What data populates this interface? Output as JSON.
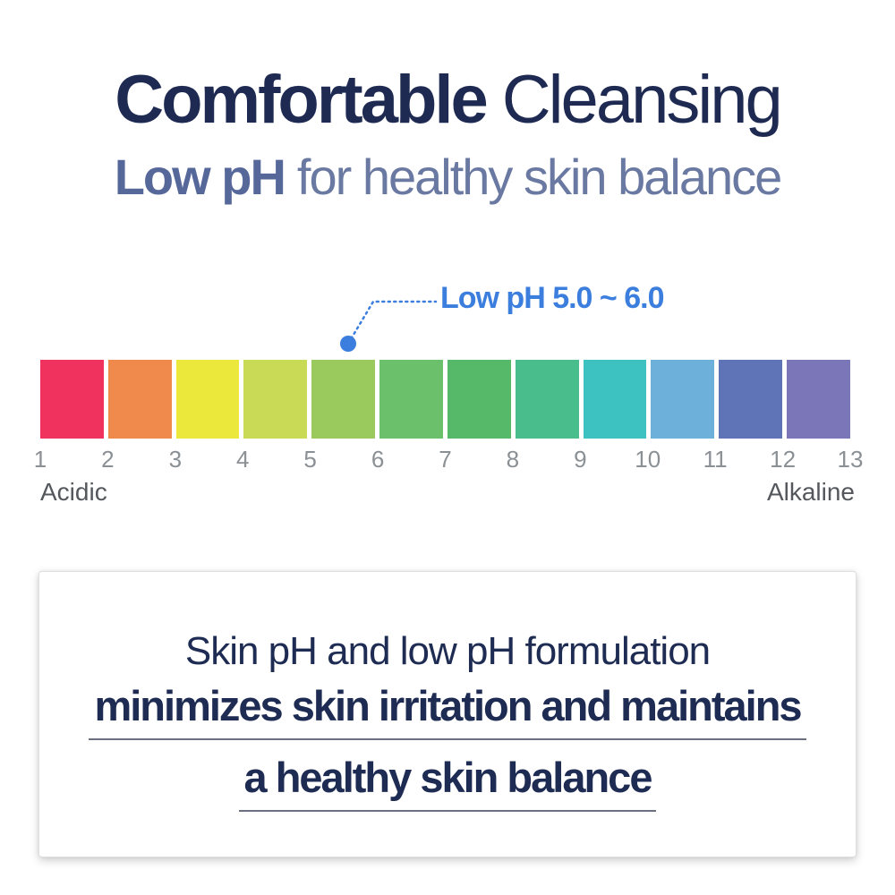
{
  "page": {
    "background": "#ffffff"
  },
  "header": {
    "title": {
      "bold": "Comfortable",
      "regular": "Cleansing",
      "color": "#1e2a52"
    },
    "subtitle": {
      "bold": "Low pH",
      "regular": "for healthy skin balance",
      "bold_color": "#56689a",
      "regular_color": "#6a79a1"
    }
  },
  "callout": {
    "label": "Low pH 5.0 ~ 6.0",
    "color": "#3b7edd",
    "marker": {
      "ph_position": 5.5
    }
  },
  "ph_scale": {
    "squares": [
      {
        "color": "#f0325f"
      },
      {
        "color": "#f08a4c"
      },
      {
        "color": "#ece83b"
      },
      {
        "color": "#c8da56"
      },
      {
        "color": "#9aca5e"
      },
      {
        "color": "#6bc06b"
      },
      {
        "color": "#56b96a"
      },
      {
        "color": "#4abd8d"
      },
      {
        "color": "#3ec2c1"
      },
      {
        "color": "#6db0d9"
      },
      {
        "color": "#5f74b6"
      },
      {
        "color": "#7b76b8"
      }
    ],
    "tick_labels": [
      "1",
      "2",
      "3",
      "4",
      "5",
      "6",
      "7",
      "8",
      "9",
      "10",
      "11",
      "12",
      "13"
    ],
    "tick_color": "#8b9095",
    "left_label": "Acidic",
    "right_label": "Alkaline",
    "end_label_color": "#54575c"
  },
  "info_card": {
    "line1": "Skin pH and low pH formulation",
    "line2_underlined": "minimizes skin irritation and maintains",
    "line3_underlined": "a healthy skin balance",
    "text_color": "#1e2b52"
  }
}
